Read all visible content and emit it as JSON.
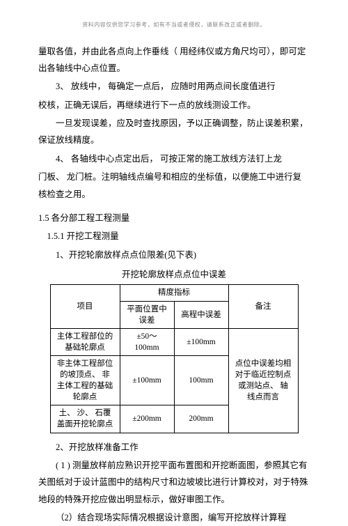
{
  "header_note": "资料内容仅供您学习参考，如有不当或者侵权，请联系改正或者删除。",
  "paragraphs": {
    "p1": "量取各值，并由此各点向上作垂线（ 用经纬仪或方角尺均可），即可定出各轴线中心点位置。",
    "p2a": "3、 放线中， 每确定一点后， 应随时用两点间长度值进行",
    "p2b": "校核，正确无误后，再继续进行下一点的放线测设工作。",
    "p3": "一旦发现误差，应及时查找原因，予以正确调整，防止误差积累，保证放线精度。",
    "p4a": "4、 各轴线中心点定出后， 可按正常的施工放线方法钉上龙",
    "p4b": "门板、 龙门桩。注明轴线点编号和相应的坐标值，以便施工中进行复核检查之用。",
    "s1": "1.5 各分部工程工程测量",
    "s1_1": "1.5.1 开挖工程测量",
    "s1_1_1": "1、开挖轮廓放样点点位限差(见下表)",
    "table_caption": "开挖轮廓放样点点位中误差",
    "s1_1_2": "2、开挖放样准备工作",
    "p5": "( 1 ) 测量放样前应熟识开挖平面布置图和开挖断面图，参照其它有关图纸对于设计蓝图中的结构尺寸和边坡坡比进行计算校对，对于特殊地段的特殊开挖应做出明显标示，做好审图工作。",
    "p6": "（2）结合现场实际情况根据设计意图，编写开挖放样计算程"
  },
  "table": {
    "header": {
      "item": "项目",
      "precision": "精度指标",
      "plane": "平面位置中误差",
      "elev": "高程中误差",
      "note": "备注"
    },
    "rows": [
      {
        "item": "主体工程部位的基础轮廓点",
        "plane": "±50～100mm",
        "elev": "±100mm"
      },
      {
        "item": "非主体工程部位的坡顶点、 非主体工程的基础轮廓点",
        "plane": "±100mm",
        "elev": "100mm"
      },
      {
        "item": "土、 沙、 石覆盖面开挖轮廓点",
        "plane": "±200mm",
        "elev": "200mm"
      }
    ],
    "note_text": "点位中误差均相对于临近控制点或测站点、 轴线点而言"
  },
  "style": {
    "font_size": 12.5,
    "table_font_size": 11.5,
    "header_color": "#888888",
    "text_color": "#000000",
    "border_color": "#000000",
    "background": "#ffffff"
  }
}
